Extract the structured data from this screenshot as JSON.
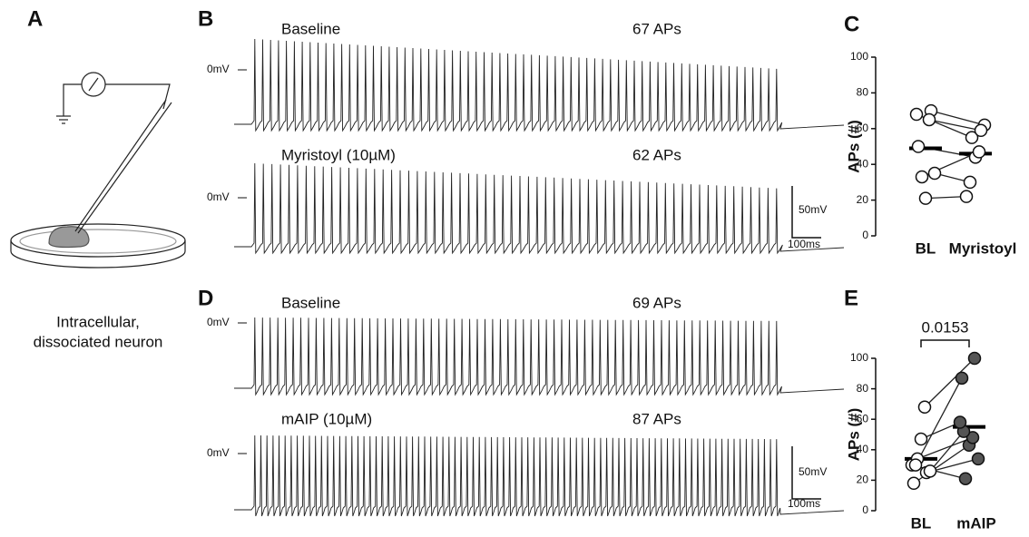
{
  "panels": [
    "A",
    "B",
    "C",
    "D",
    "E"
  ],
  "caption": [
    "Intracellular,",
    "dissociated neuron"
  ],
  "scale_bars": [
    {
      "voltage": "50mV",
      "time": "100ms"
    },
    {
      "voltage": "50mV",
      "time": "100ms"
    }
  ],
  "traces": [
    {
      "label": "Baseline",
      "ap_count": 67,
      "ap_label": "67 APs",
      "zero_label": "0mV"
    },
    {
      "label": "Myristoyl (10µM)",
      "ap_count": 62,
      "ap_label": "62 APs",
      "zero_label": "0mV"
    },
    {
      "label": "Baseline",
      "ap_count": 69,
      "ap_label": "69 APs",
      "zero_label": "0mV"
    },
    {
      "label": "mAIP (10µM)",
      "ap_count": 87,
      "ap_label": "87 APs",
      "zero_label": "0mV"
    }
  ],
  "chart_data": [
    {
      "type": "paired-scatter",
      "ylabel": "APs (#)",
      "categories": [
        "BL",
        "Myristoyl"
      ],
      "series": [
        {
          "color": "#ffffff",
          "values": [
            68,
            70,
            50,
            33,
            35,
            21,
            65
          ]
        },
        {
          "color": "#ffffff",
          "values": [
            55,
            62,
            44,
            47,
            30,
            22,
            59
          ]
        }
      ],
      "means": [
        49,
        46
      ],
      "ylim": [
        0,
        100
      ],
      "yticks": [
        0,
        20,
        40,
        60,
        80,
        100
      ]
    },
    {
      "type": "paired-scatter",
      "ylabel": "APs (#)",
      "categories": [
        "BL",
        "mAIP"
      ],
      "series": [
        {
          "color": "#ffffff",
          "values": [
            30,
            25,
            18,
            34,
            26,
            47,
            68,
            30
          ]
        },
        {
          "color": "#555555",
          "values": [
            21,
            34,
            43,
            48,
            52,
            58,
            100,
            87
          ]
        }
      ],
      "means": [
        34,
        55
      ],
      "ylim": [
        0,
        100
      ],
      "yticks": [
        0,
        20,
        40,
        60,
        80,
        100
      ],
      "annotation": "0.0153"
    }
  ]
}
